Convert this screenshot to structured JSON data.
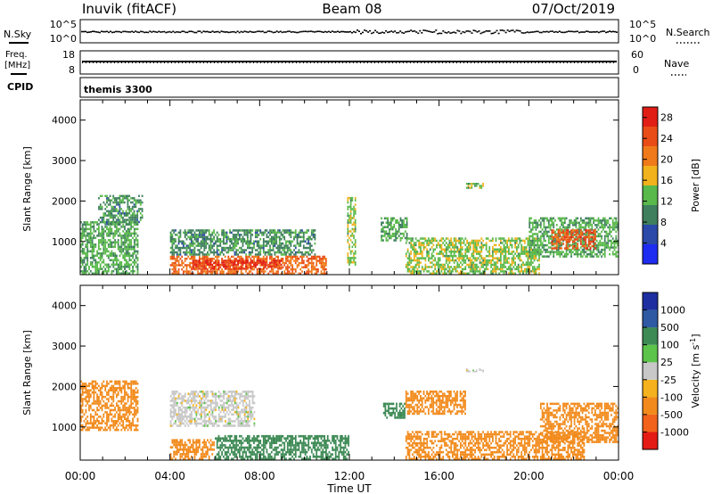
{
  "header": {
    "station": "Inuvik (fitACF)",
    "beam": "Beam 08",
    "date": "07/Oct/2019"
  },
  "noise_panel": {
    "left_label": "N.Sky",
    "left_ticks": [
      "10^5",
      "10^0"
    ],
    "right_ticks": [
      "10^5",
      "10^0"
    ],
    "right_label": "N.Search"
  },
  "freq_panel": {
    "left_label_top": "Freq.",
    "left_label_unit": "[MHz]",
    "left_ticks": [
      "18",
      "8"
    ],
    "right_ticks": [
      "60",
      "0"
    ],
    "right_label": "Nave"
  },
  "cpid": {
    "label": "CPID",
    "value": "themis 3300"
  },
  "x_axis": {
    "tick_labels": [
      "00:00",
      "04:00",
      "08:00",
      "12:00",
      "16:00",
      "20:00",
      "00:00"
    ],
    "label": "Time UT"
  },
  "colors": {
    "power": [
      "#1e2bf0",
      "#2a49a8",
      "#3f7f5e",
      "#59b94a",
      "#f1b21c",
      "#f07a19",
      "#e94c17",
      "#e11e16"
    ],
    "velocity": [
      "#e31b14",
      "#f2621a",
      "#f28a1b",
      "#f5b21e",
      "#c8c8c8",
      "#5cc44a",
      "#3e8a55",
      "#2f5aa3",
      "#1d2fa0"
    ]
  },
  "chart_data": [
    {
      "type": "heatmap",
      "title": "Power",
      "xlabel": "",
      "ylabel": "Slant Range [km]",
      "xlim": [
        0,
        24
      ],
      "ylim": [
        180,
        4500
      ],
      "y_ticks": [
        "1000",
        "2000",
        "3000",
        "4000"
      ],
      "colorbar": {
        "label": "Power [dB]",
        "ticks": [
          "4",
          "8",
          "12",
          "16",
          "20",
          "24",
          "28"
        ],
        "range": [
          0,
          30
        ]
      },
      "regions": [
        {
          "x": [
            0.0,
            2.6
          ],
          "range": [
            180,
            1500
          ],
          "value": 12
        },
        {
          "x": [
            0.8,
            2.8
          ],
          "range": [
            1400,
            2150
          ],
          "value": 10
        },
        {
          "x": [
            4.0,
            11.0
          ],
          "range": [
            180,
            650
          ],
          "value": 22
        },
        {
          "x": [
            5.0,
            9.0
          ],
          "range": [
            300,
            550
          ],
          "value": 27
        },
        {
          "x": [
            4.0,
            10.5
          ],
          "range": [
            650,
            1300
          ],
          "value": 10
        },
        {
          "x": [
            11.9,
            12.3
          ],
          "range": [
            400,
            2100
          ],
          "value": 14
        },
        {
          "x": [
            13.4,
            14.6
          ],
          "range": [
            1000,
            1600
          ],
          "value": 12
        },
        {
          "x": [
            14.5,
            20.5
          ],
          "range": [
            180,
            1100
          ],
          "value": 14
        },
        {
          "x": [
            17.2,
            18.0
          ],
          "range": [
            2300,
            2450
          ],
          "value": 14
        },
        {
          "x": [
            20.0,
            24.0
          ],
          "range": [
            600,
            1600
          ],
          "value": 12
        },
        {
          "x": [
            21.0,
            23.0
          ],
          "range": [
            800,
            1300
          ],
          "value": 24
        }
      ]
    },
    {
      "type": "heatmap",
      "title": "Velocity",
      "xlabel": "Time UT",
      "ylabel": "Slant Range [km]",
      "xlim": [
        0,
        24
      ],
      "ylim": [
        180,
        4500
      ],
      "y_ticks": [
        "1000",
        "2000",
        "3000",
        "4000"
      ],
      "colorbar": {
        "label": "Velocity [m s^-1]",
        "ticks": [
          "1000",
          "500",
          "100",
          "25",
          "-25",
          "-100",
          "-500",
          "-1000"
        ]
      },
      "regions": [
        {
          "x": [
            0.0,
            2.6
          ],
          "range": [
            900,
            2150
          ],
          "value": -200
        },
        {
          "x": [
            4.0,
            7.8
          ],
          "range": [
            1000,
            1900
          ],
          "value": 0
        },
        {
          "x": [
            4.0,
            6.0
          ],
          "range": [
            180,
            700
          ],
          "value": -150
        },
        {
          "x": [
            6.0,
            12.0
          ],
          "range": [
            180,
            800
          ],
          "value": 200
        },
        {
          "x": [
            13.5,
            14.5
          ],
          "range": [
            1200,
            1600
          ],
          "value": 150
        },
        {
          "x": [
            14.5,
            17.2
          ],
          "range": [
            1300,
            1900
          ],
          "value": -200
        },
        {
          "x": [
            14.5,
            22.5
          ],
          "range": [
            180,
            900
          ],
          "value": -200
        },
        {
          "x": [
            20.5,
            24.0
          ],
          "range": [
            600,
            1600
          ],
          "value": -200
        },
        {
          "x": [
            17.2,
            18.0
          ],
          "range": [
            2350,
            2450
          ],
          "value": 0
        }
      ]
    }
  ]
}
